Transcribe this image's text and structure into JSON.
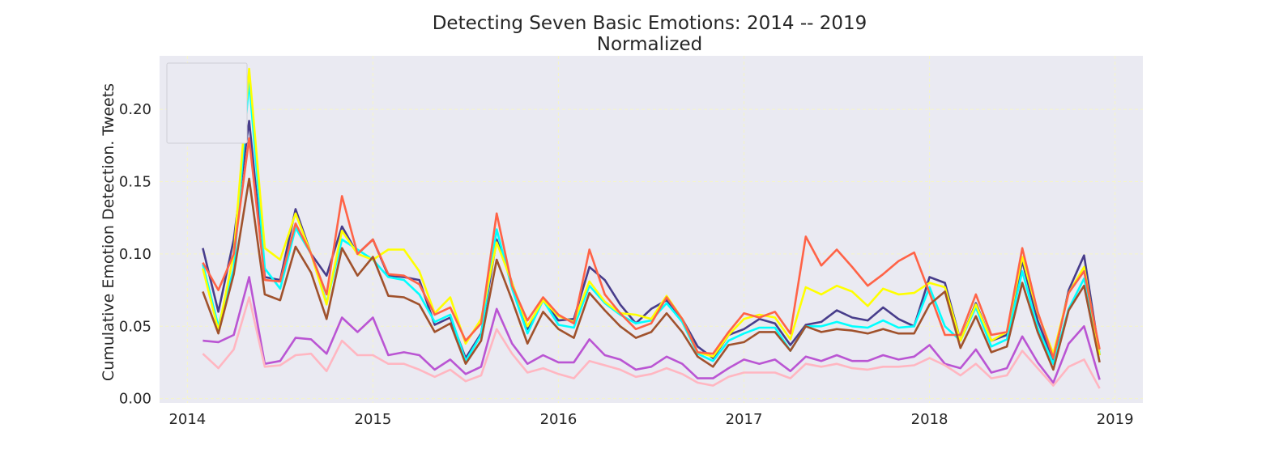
{
  "chart_data": {
    "type": "line",
    "title": "Detecting Seven Basic Emotions: 2014 -- 2019",
    "subtitle": "Normalized",
    "xlabel": "",
    "ylabel": "Cumulative Emotion Detection. Tweets",
    "xlim": [
      2013.85,
      2019.15
    ],
    "ylim": [
      -0.003,
      0.237
    ],
    "x_ticks": [
      2014,
      2015,
      2016,
      2017,
      2018,
      2019
    ],
    "x_tick_labels": [
      "2014",
      "2015",
      "2016",
      "2017",
      "2018",
      "2019"
    ],
    "y_ticks": [
      0.0,
      0.05,
      0.1,
      0.15,
      0.2
    ],
    "y_tick_labels": [
      "0.00",
      "0.05",
      "0.10",
      "0.15",
      "0.20"
    ],
    "grid": true,
    "legend": {
      "placement": "upper-left",
      "entries": []
    },
    "x": [
      2014.083,
      2014.167,
      2014.25,
      2014.333,
      2014.417,
      2014.5,
      2014.583,
      2014.667,
      2014.75,
      2014.833,
      2014.917,
      2015.0,
      2015.083,
      2015.167,
      2015.25,
      2015.333,
      2015.417,
      2015.5,
      2015.583,
      2015.667,
      2015.75,
      2015.833,
      2015.917,
      2016.0,
      2016.083,
      2016.167,
      2016.25,
      2016.333,
      2016.417,
      2016.5,
      2016.583,
      2016.667,
      2016.75,
      2016.833,
      2016.917,
      2017.0,
      2017.083,
      2017.167,
      2017.25,
      2017.333,
      2017.417,
      2017.5,
      2017.583,
      2017.667,
      2017.75,
      2017.833,
      2017.917,
      2018.0,
      2018.083,
      2018.167,
      2018.25,
      2018.333,
      2018.417,
      2018.5,
      2018.583,
      2018.667,
      2018.75,
      2018.833,
      2018.917
    ],
    "series": [
      {
        "color": "#483d8b",
        "values": [
          0.104,
          0.06,
          0.11,
          0.192,
          0.084,
          0.082,
          0.131,
          0.1,
          0.085,
          0.119,
          0.1,
          0.11,
          0.085,
          0.084,
          0.082,
          0.051,
          0.056,
          0.028,
          0.045,
          0.11,
          0.08,
          0.048,
          0.068,
          0.054,
          0.055,
          0.091,
          0.082,
          0.065,
          0.052,
          0.062,
          0.068,
          0.055,
          0.036,
          0.028,
          0.044,
          0.048,
          0.055,
          0.052,
          0.037,
          0.051,
          0.053,
          0.061,
          0.056,
          0.054,
          0.063,
          0.055,
          0.05,
          0.084,
          0.08,
          0.04,
          0.066,
          0.04,
          0.044,
          0.095,
          0.054,
          0.026,
          0.075,
          0.099,
          0.03
        ]
      },
      {
        "color": "#00ffff",
        "values": [
          0.093,
          0.05,
          0.09,
          0.22,
          0.09,
          0.076,
          0.118,
          0.1,
          0.066,
          0.11,
          0.103,
          0.096,
          0.084,
          0.082,
          0.072,
          0.053,
          0.058,
          0.026,
          0.044,
          0.117,
          0.076,
          0.045,
          0.068,
          0.051,
          0.049,
          0.078,
          0.066,
          0.058,
          0.052,
          0.054,
          0.066,
          0.053,
          0.031,
          0.026,
          0.04,
          0.045,
          0.049,
          0.049,
          0.033,
          0.05,
          0.05,
          0.053,
          0.05,
          0.049,
          0.054,
          0.049,
          0.05,
          0.077,
          0.05,
          0.04,
          0.063,
          0.036,
          0.041,
          0.088,
          0.049,
          0.024,
          0.062,
          0.083,
          0.031
        ]
      },
      {
        "color": "#ffff00",
        "values": [
          0.09,
          0.047,
          0.1,
          0.228,
          0.104,
          0.096,
          0.128,
          0.1,
          0.065,
          0.116,
          0.1,
          0.096,
          0.103,
          0.103,
          0.088,
          0.059,
          0.07,
          0.038,
          0.055,
          0.108,
          0.08,
          0.05,
          0.068,
          0.057,
          0.053,
          0.081,
          0.067,
          0.059,
          0.058,
          0.055,
          0.071,
          0.055,
          0.032,
          0.029,
          0.044,
          0.055,
          0.058,
          0.056,
          0.041,
          0.077,
          0.072,
          0.078,
          0.074,
          0.064,
          0.076,
          0.072,
          0.073,
          0.08,
          0.077,
          0.04,
          0.065,
          0.04,
          0.046,
          0.098,
          0.059,
          0.031,
          0.073,
          0.091,
          0.03
        ]
      },
      {
        "color": "#ff6347",
        "values": [
          0.094,
          0.075,
          0.1,
          0.18,
          0.082,
          0.081,
          0.121,
          0.1,
          0.072,
          0.14,
          0.1,
          0.11,
          0.086,
          0.085,
          0.079,
          0.058,
          0.063,
          0.04,
          0.052,
          0.128,
          0.078,
          0.054,
          0.07,
          0.058,
          0.052,
          0.103,
          0.072,
          0.059,
          0.048,
          0.052,
          0.07,
          0.055,
          0.032,
          0.031,
          0.046,
          0.059,
          0.056,
          0.06,
          0.045,
          0.112,
          0.092,
          0.103,
          0.091,
          0.078,
          0.086,
          0.095,
          0.101,
          0.073,
          0.044,
          0.044,
          0.072,
          0.044,
          0.046,
          0.104,
          0.06,
          0.028,
          0.073,
          0.088,
          0.034
        ]
      },
      {
        "color": "#a0522d",
        "values": [
          0.074,
          0.045,
          0.086,
          0.152,
          0.072,
          0.068,
          0.105,
          0.087,
          0.055,
          0.104,
          0.085,
          0.098,
          0.071,
          0.07,
          0.065,
          0.046,
          0.052,
          0.024,
          0.04,
          0.096,
          0.068,
          0.038,
          0.06,
          0.048,
          0.042,
          0.073,
          0.061,
          0.05,
          0.042,
          0.046,
          0.059,
          0.046,
          0.029,
          0.022,
          0.037,
          0.039,
          0.046,
          0.046,
          0.033,
          0.05,
          0.046,
          0.048,
          0.047,
          0.045,
          0.048,
          0.045,
          0.045,
          0.065,
          0.074,
          0.035,
          0.057,
          0.032,
          0.036,
          0.08,
          0.046,
          0.02,
          0.061,
          0.078,
          0.025
        ]
      },
      {
        "color": "#ba55d3",
        "values": [
          0.04,
          0.039,
          0.044,
          0.084,
          0.024,
          0.026,
          0.042,
          0.041,
          0.031,
          0.056,
          0.046,
          0.056,
          0.03,
          0.032,
          0.03,
          0.02,
          0.027,
          0.017,
          0.022,
          0.062,
          0.038,
          0.024,
          0.03,
          0.025,
          0.025,
          0.041,
          0.03,
          0.027,
          0.02,
          0.022,
          0.029,
          0.024,
          0.014,
          0.014,
          0.021,
          0.027,
          0.024,
          0.027,
          0.019,
          0.029,
          0.026,
          0.03,
          0.026,
          0.026,
          0.03,
          0.027,
          0.029,
          0.037,
          0.024,
          0.021,
          0.034,
          0.018,
          0.021,
          0.043,
          0.025,
          0.011,
          0.038,
          0.05,
          0.013
        ]
      },
      {
        "color": "#ffb6c1",
        "values": [
          0.031,
          0.021,
          0.034,
          0.07,
          0.022,
          0.023,
          0.03,
          0.031,
          0.019,
          0.04,
          0.03,
          0.03,
          0.024,
          0.024,
          0.02,
          0.015,
          0.02,
          0.012,
          0.016,
          0.048,
          0.031,
          0.018,
          0.021,
          0.017,
          0.014,
          0.026,
          0.023,
          0.02,
          0.015,
          0.017,
          0.021,
          0.017,
          0.011,
          0.009,
          0.015,
          0.018,
          0.018,
          0.018,
          0.014,
          0.024,
          0.022,
          0.024,
          0.021,
          0.02,
          0.022,
          0.022,
          0.023,
          0.028,
          0.023,
          0.016,
          0.024,
          0.014,
          0.016,
          0.033,
          0.021,
          0.009,
          0.022,
          0.027,
          0.007
        ]
      }
    ]
  }
}
